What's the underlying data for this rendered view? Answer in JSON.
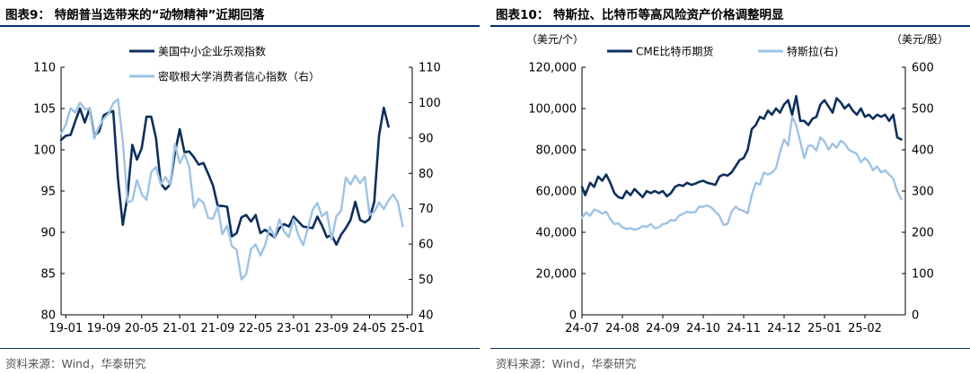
{
  "colors": {
    "dark": "#0d2f5c",
    "light": "#9dc3e6",
    "rule": "#003366",
    "axis": "#000000"
  },
  "charts": [
    {
      "title": "图表9：  特朗普当选带来的“动物精神”近期回落",
      "source": "资料来源：Wind，华泰研究",
      "chart_data": {
        "type": "line",
        "title": "特朗普当选带来的“动物精神”近期回落",
        "x_tick_labels": [
          "19-01",
          "19-09",
          "20-05",
          "21-01",
          "21-09",
          "22-05",
          "23-01",
          "23-09",
          "24-05",
          "25-01"
        ],
        "x_range": [
          0,
          74
        ],
        "y_left": {
          "ticks": [
            "110",
            "105",
            "100",
            "95",
            "90",
            "85",
            "80"
          ],
          "range": [
            80,
            110
          ]
        },
        "y_right": {
          "ticks": [
            "110",
            "100",
            "90",
            "80",
            "70",
            "60",
            "50",
            "40"
          ],
          "range": [
            40,
            110
          ]
        },
        "legend_position": "top-center",
        "series": [
          {
            "name": "美国中小企业乐观指数",
            "axis": "left",
            "style": "dark",
            "x": [
              0,
              1,
              2,
              3,
              4,
              5,
              6,
              7,
              8,
              9,
              10,
              11,
              12,
              13,
              14,
              15,
              16,
              17,
              18,
              19,
              20,
              21,
              22,
              23,
              24,
              25,
              26,
              27,
              28,
              29,
              30,
              31,
              32,
              33,
              34,
              35,
              36,
              37,
              38,
              39,
              40,
              41,
              42,
              43,
              44,
              45,
              46,
              47,
              48,
              49,
              50,
              51,
              52,
              53,
              54,
              55,
              56,
              57,
              58,
              59,
              60,
              61,
              62,
              63,
              64,
              65,
              66,
              67,
              68,
              69,
              70,
              71,
              72,
              73
            ],
            "values": [
              101.2,
              101.7,
              101.8,
              103.5,
              105.0,
              103.3,
              105.0,
              101.7,
              102.2,
              104.2,
              104.5,
              104.7,
              96.4,
              90.9,
              94.4,
              100.6,
              98.8,
              100.2,
              104.0,
              104.0,
              101.4,
              95.9,
              95.2,
              95.8,
              99.6,
              102.5,
              99.7,
              99.8,
              99.1,
              98.2,
              98.4,
              97.1,
              95.7,
              93.2,
              93.2,
              93.1,
              89.5,
              89.9,
              91.8,
              92.1,
              91.3,
              92.1,
              89.9,
              90.3,
              89.8,
              89.4,
              90.5,
              91.0,
              90.7,
              91.9,
              91.3,
              90.7,
              90.6,
              90.5,
              91.9,
              90.8,
              89.4,
              89.7,
              88.5,
              89.7,
              90.5,
              91.5,
              93.7,
              91.5,
              91.2,
              91.6,
              93.7,
              101.7,
              105.1,
              102.8,
              null,
              null,
              null,
              null
            ]
          },
          {
            "name": "密歇根大学消费者信心指数（右）",
            "axis": "right",
            "style": "light",
            "x": [
              0,
              1,
              2,
              3,
              4,
              5,
              6,
              7,
              8,
              9,
              10,
              11,
              12,
              13,
              14,
              15,
              16,
              17,
              18,
              19,
              20,
              21,
              22,
              23,
              24,
              25,
              26,
              27,
              28,
              29,
              30,
              31,
              32,
              33,
              34,
              35,
              36,
              37,
              38,
              39,
              40,
              41,
              42,
              43,
              44,
              45,
              46,
              47,
              48,
              49,
              50,
              51,
              52,
              53,
              54,
              55,
              56,
              57,
              58,
              59,
              60,
              61,
              62,
              63,
              64,
              65,
              66,
              67,
              68,
              69,
              70,
              71,
              72,
              73
            ],
            "values": [
              91.2,
              93.8,
              98.4,
              97.2,
              100.0,
              98.2,
              98.2,
              89.8,
              93.2,
              95.5,
              96.8,
              99.8,
              101.0,
              89.1,
              71.8,
              72.3,
              78.1,
              74.1,
              72.5,
              80.4,
              81.8,
              76.9,
              79.0,
              76.8,
              88.3,
              82.9,
              85.5,
              81.8,
              70.3,
              72.8,
              71.7,
              67.4,
              67.2,
              70.6,
              62.8,
              65.2,
              59.4,
              58.4,
              50.0,
              51.5,
              58.6,
              59.9,
              56.8,
              59.7,
              64.9,
              62.0,
              67.0,
              63.5,
              62.0,
              67.0,
              62.5,
              59.7,
              64.4,
              69.7,
              71.6,
              67.8,
              69.1,
              61.3,
              67.9,
              69.4,
              78.8,
              76.9,
              79.4,
              77.2,
              79.0,
              68.2,
              69.1,
              71.8,
              69.9,
              72.4,
              74.0,
              71.7,
              65.0,
              null
            ]
          }
        ]
      }
    },
    {
      "title": "图表10：  特斯拉、比特币等高风险资产价格调整明显",
      "source": "资料来源：Wind，华泰研究",
      "left_unit": "（美元/个）",
      "right_unit": "（美元/股）",
      "chart_data": {
        "type": "line",
        "title": "特斯拉、比特币等高风险资产价格调整明显",
        "x_tick_labels": [
          "24-07",
          "24-08",
          "24-09",
          "24-10",
          "24-11",
          "24-12",
          "25-01",
          "25-02"
        ],
        "x_range": [
          0,
          8
        ],
        "y_left": {
          "ticks": [
            "120,000",
            "100,000",
            "80,000",
            "60,000",
            "40,000",
            "20,000",
            "0"
          ],
          "range": [
            0,
            120000
          ],
          "unit": "（美元/个）"
        },
        "y_right": {
          "ticks": [
            "600",
            "500",
            "400",
            "300",
            "200",
            "100",
            "0"
          ],
          "range": [
            0,
            600
          ],
          "unit": "（美元/股）"
        },
        "legend_position": "top-center",
        "series": [
          {
            "name": "CME比特币期货",
            "axis": "left",
            "style": "dark",
            "x": [
              0,
              0.08,
              0.2,
              0.3,
              0.4,
              0.5,
              0.6,
              0.7,
              0.8,
              0.9,
              1.0,
              1.1,
              1.2,
              1.3,
              1.4,
              1.5,
              1.6,
              1.7,
              1.8,
              1.9,
              2.0,
              2.1,
              2.2,
              2.3,
              2.4,
              2.5,
              2.6,
              2.7,
              2.8,
              2.9,
              3.0,
              3.1,
              3.2,
              3.3,
              3.4,
              3.5,
              3.6,
              3.7,
              3.8,
              3.9,
              4.0,
              4.1,
              4.2,
              4.3,
              4.4,
              4.5,
              4.6,
              4.7,
              4.8,
              4.9,
              5.0,
              5.1,
              5.2,
              5.3,
              5.4,
              5.5,
              5.6,
              5.7,
              5.8,
              5.9,
              6.0,
              6.1,
              6.2,
              6.3,
              6.4,
              6.5,
              6.6,
              6.7,
              6.8,
              6.9,
              7.0,
              7.1,
              7.2,
              7.3,
              7.4,
              7.5,
              7.6,
              7.7,
              7.8,
              7.9
            ],
            "values": [
              62000,
              58000,
              64000,
              62000,
              67000,
              65000,
              68000,
              64000,
              59000,
              57000,
              56500,
              60000,
              58000,
              61000,
              59000,
              57000,
              60000,
              59000,
              60000,
              59000,
              60000,
              57500,
              59000,
              62000,
              63000,
              62500,
              64000,
              63000,
              63500,
              64500,
              65000,
              64000,
              63500,
              63000,
              67000,
              68000,
              67500,
              69000,
              72000,
              75000,
              76000,
              80000,
              90000,
              92000,
              96000,
              95000,
              99000,
              97000,
              100000,
              98000,
              102000,
              104000,
              97000,
              106000,
              94000,
              94000,
              92000,
              95000,
              96000,
              102000,
              104000,
              101000,
              98000,
              105000,
              103000,
              100000,
              102000,
              99000,
              97000,
              100000,
              96000,
              97000,
              95000,
              97000,
              96000,
              97000,
              94000,
              97000,
              86000,
              85000
            ]
          },
          {
            "name": "特斯拉(右)",
            "axis": "right",
            "style": "light",
            "x": [
              0,
              0.1,
              0.2,
              0.3,
              0.4,
              0.5,
              0.6,
              0.7,
              0.8,
              0.9,
              1.0,
              1.1,
              1.2,
              1.3,
              1.4,
              1.5,
              1.6,
              1.7,
              1.8,
              1.9,
              2.0,
              2.1,
              2.2,
              2.3,
              2.4,
              2.5,
              2.6,
              2.7,
              2.8,
              2.9,
              3.0,
              3.1,
              3.2,
              3.3,
              3.4,
              3.5,
              3.6,
              3.7,
              3.8,
              3.9,
              4.0,
              4.1,
              4.2,
              4.3,
              4.4,
              4.5,
              4.6,
              4.7,
              4.8,
              4.9,
              5.0,
              5.1,
              5.2,
              5.3,
              5.4,
              5.5,
              5.6,
              5.7,
              5.8,
              5.9,
              6.0,
              6.1,
              6.2,
              6.3,
              6.4,
              6.5,
              6.6,
              6.7,
              6.8,
              6.9,
              7.0,
              7.1,
              7.2,
              7.3,
              7.4,
              7.5,
              7.6,
              7.7,
              7.8,
              7.9
            ],
            "values": [
              235,
              248,
              240,
              255,
              252,
              245,
              250,
              232,
              220,
              222,
              212,
              208,
              210,
              206,
              209,
              215,
              213,
              220,
              210,
              212,
              220,
              222,
              230,
              228,
              240,
              245,
              250,
              248,
              249,
              262,
              262,
              265,
              260,
              250,
              240,
              218,
              220,
              250,
              262,
              255,
              252,
              246,
              290,
              320,
              315,
              345,
              340,
              345,
              355,
              395,
              425,
              410,
              480,
              460,
              420,
              380,
              410,
              410,
              398,
              430,
              420,
              400,
              415,
              405,
              422,
              415,
              400,
              395,
              390,
              370,
              380,
              370,
              350,
              360,
              345,
              350,
              340,
              330,
              300,
              280
            ]
          }
        ]
      }
    }
  ]
}
